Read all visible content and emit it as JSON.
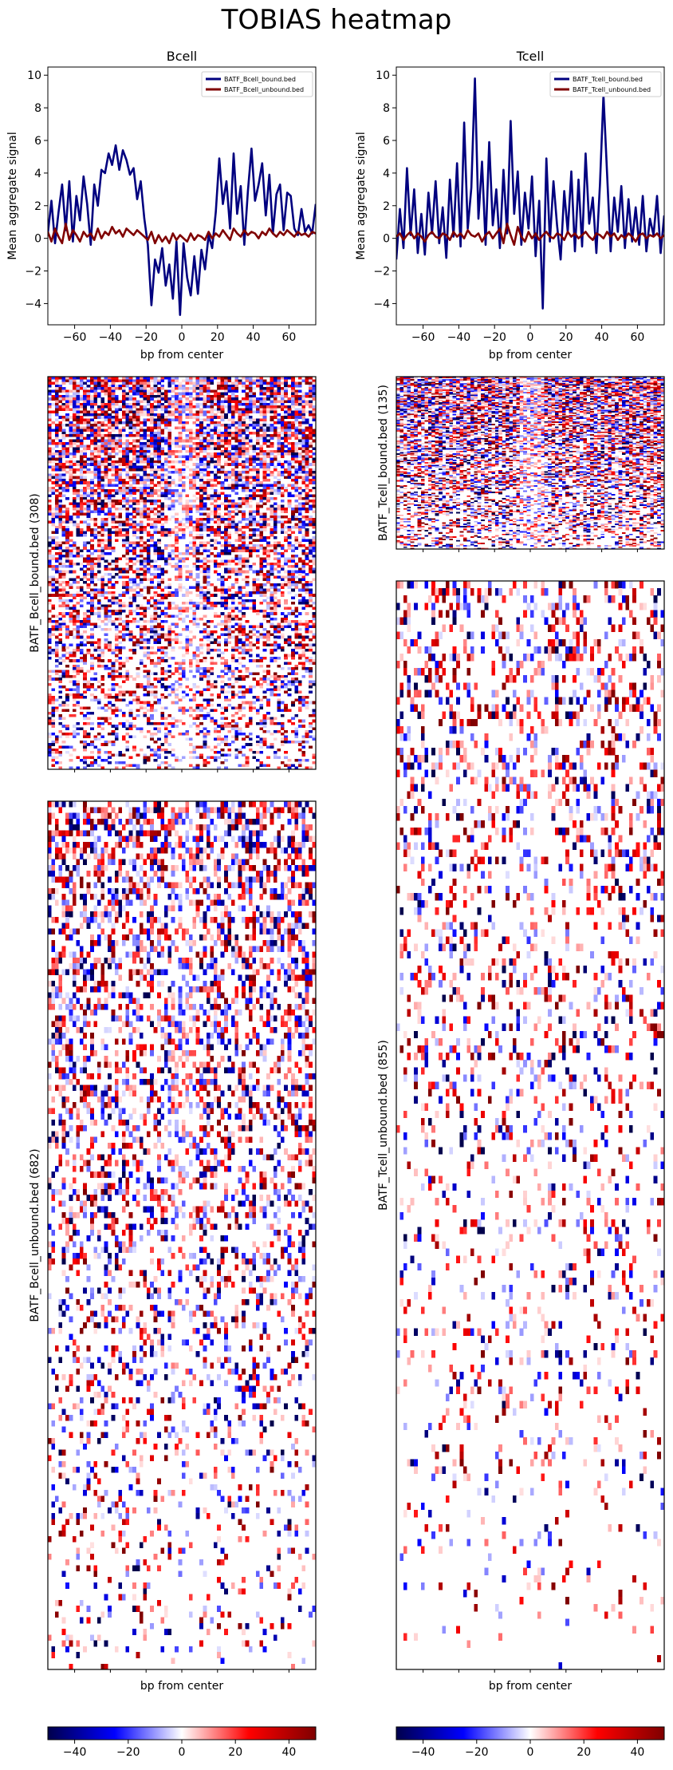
{
  "figure_title": "TOBIAS heatmap",
  "colors": {
    "bound_line": "#00007f",
    "unbound_line": "#7f0000",
    "colormap": [
      "#00004c",
      "#0000ff",
      "#ffffff",
      "#ff0000",
      "#7f0000"
    ]
  },
  "colorbar_ticks": [
    -40,
    -20,
    0,
    20,
    40
  ],
  "colorbar_range": [
    -50,
    50
  ],
  "chart_data": [
    {
      "type": "line",
      "title": "Bcell",
      "xlabel": "bp from center",
      "ylabel": "Mean aggregate signal",
      "xlim": [
        -75,
        75
      ],
      "ylim": [
        -5.3,
        10.5
      ],
      "xticks": [
        -60,
        -40,
        -20,
        0,
        20,
        40,
        60
      ],
      "yticks": [
        -4,
        -2,
        0,
        2,
        4,
        6,
        8,
        10
      ],
      "legend_position": "top-right",
      "series": [
        {
          "name": "BATF_Bcell_bound.bed",
          "x": [
            -75,
            -73,
            -71,
            -69,
            -67,
            -65,
            -63,
            -61,
            -59,
            -57,
            -55,
            -53,
            -51,
            -49,
            -47,
            -45,
            -43,
            -41,
            -39,
            -37,
            -35,
            -33,
            -31,
            -29,
            -27,
            -25,
            -23,
            -21,
            -19,
            -17,
            -15,
            -13,
            -11,
            -9,
            -7,
            -5,
            -3,
            -1,
            1,
            3,
            5,
            7,
            9,
            11,
            13,
            15,
            17,
            19,
            21,
            23,
            25,
            27,
            29,
            31,
            33,
            35,
            37,
            39,
            41,
            43,
            45,
            47,
            49,
            51,
            53,
            55,
            57,
            59,
            61,
            63,
            65,
            67,
            69,
            71,
            73,
            75
          ],
          "y": [
            0.3,
            2.3,
            -0.3,
            1.6,
            3.3,
            0.5,
            3.5,
            -0.2,
            2.6,
            1.1,
            3.8,
            2.1,
            -0.4,
            3.3,
            2.0,
            4.2,
            4.0,
            5.2,
            4.5,
            5.7,
            4.2,
            5.4,
            4.8,
            3.9,
            4.3,
            2.4,
            3.5,
            1.2,
            -0.4,
            -4.1,
            -1.3,
            -2.1,
            -0.6,
            -2.9,
            -1.6,
            -3.7,
            -0.2,
            -4.7,
            -0.3,
            -2.4,
            -3.5,
            -1.1,
            -3.4,
            -0.7,
            -1.9,
            0.2,
            -0.6,
            1.6,
            4.9,
            2.1,
            3.5,
            0.6,
            5.2,
            1.5,
            3.2,
            -0.4,
            2.9,
            5.5,
            2.3,
            3.3,
            4.6,
            1.4,
            3.9,
            0.3,
            2.7,
            3.3,
            0.5,
            2.8,
            2.6,
            0.6,
            0.2,
            1.8,
            0.4,
            0.8,
            0.3,
            2.1
          ]
        },
        {
          "name": "BATF_Bcell_unbound.bed",
          "x": [
            -75,
            -73,
            -71,
            -69,
            -67,
            -65,
            -63,
            -61,
            -59,
            -57,
            -55,
            -53,
            -51,
            -49,
            -47,
            -45,
            -43,
            -41,
            -39,
            -37,
            -35,
            -33,
            -31,
            -29,
            -27,
            -25,
            -23,
            -21,
            -19,
            -17,
            -15,
            -13,
            -11,
            -9,
            -7,
            -5,
            -3,
            -1,
            1,
            3,
            5,
            7,
            9,
            11,
            13,
            15,
            17,
            19,
            21,
            23,
            25,
            27,
            29,
            31,
            33,
            35,
            37,
            39,
            41,
            43,
            45,
            47,
            49,
            51,
            53,
            55,
            57,
            59,
            61,
            63,
            65,
            67,
            69,
            71,
            73,
            75
          ],
          "y": [
            0.4,
            -0.2,
            0.6,
            0.1,
            -0.3,
            0.9,
            -0.1,
            0.5,
            0.2,
            -0.2,
            0.4,
            0.1,
            0.3,
            -0.1,
            0.6,
            0.0,
            0.4,
            0.2,
            0.7,
            0.3,
            0.5,
            0.1,
            0.6,
            0.4,
            0.2,
            0.5,
            0.3,
            0.1,
            -0.1,
            0.4,
            -0.3,
            0.2,
            -0.2,
            0.1,
            -0.3,
            0.3,
            -0.1,
            0.2,
            0.0,
            -0.2,
            0.3,
            -0.1,
            0.2,
            0.1,
            -0.1,
            0.4,
            0.0,
            0.3,
            0.1,
            0.5,
            0.2,
            -0.1,
            0.6,
            0.3,
            0.1,
            0.5,
            0.2,
            0.4,
            0.3,
            0.0,
            0.4,
            0.2,
            0.6,
            0.3,
            0.1,
            0.4,
            0.2,
            0.5,
            0.3,
            0.1,
            0.4,
            0.2,
            0.3,
            0.1,
            0.4,
            0.3
          ]
        }
      ]
    },
    {
      "type": "line",
      "title": "Tcell",
      "xlabel": "bp from center",
      "ylabel": "Mean aggregate signal",
      "xlim": [
        -75,
        75
      ],
      "ylim": [
        -5.3,
        10.5
      ],
      "xticks": [
        -60,
        -40,
        -20,
        0,
        20,
        40,
        60
      ],
      "yticks": [
        -4,
        -2,
        0,
        2,
        4,
        6,
        8,
        10
      ],
      "legend_position": "top-right",
      "series": [
        {
          "name": "BATF_Tcell_bound.bed",
          "x": [
            -75,
            -73,
            -71,
            -69,
            -67,
            -65,
            -63,
            -61,
            -59,
            -57,
            -55,
            -53,
            -51,
            -49,
            -47,
            -45,
            -43,
            -41,
            -39,
            -37,
            -35,
            -33,
            -31,
            -29,
            -27,
            -25,
            -23,
            -21,
            -19,
            -17,
            -15,
            -13,
            -11,
            -9,
            -7,
            -5,
            -3,
            -1,
            1,
            3,
            5,
            7,
            9,
            11,
            13,
            15,
            17,
            19,
            21,
            23,
            25,
            27,
            29,
            31,
            33,
            35,
            37,
            39,
            41,
            43,
            45,
            47,
            49,
            51,
            53,
            55,
            57,
            59,
            61,
            63,
            65,
            67,
            69,
            71,
            73,
            75
          ],
          "y": [
            -1.3,
            1.8,
            -0.6,
            4.3,
            0.2,
            3.0,
            -0.9,
            1.5,
            -1.0,
            2.8,
            0.3,
            3.5,
            -0.3,
            1.9,
            -1.2,
            3.6,
            0.1,
            4.6,
            -0.5,
            7.1,
            0.6,
            3.1,
            9.8,
            1.2,
            4.7,
            -0.4,
            5.9,
            0.8,
            3.0,
            -0.6,
            4.2,
            0.3,
            7.2,
            1.5,
            4.1,
            -0.4,
            2.8,
            0.6,
            3.8,
            -1.1,
            2.3,
            -4.3,
            4.9,
            -0.2,
            3.5,
            0.8,
            -1.3,
            2.9,
            0.4,
            4.1,
            -0.8,
            3.6,
            -0.5,
            5.2,
            0.9,
            2.5,
            -0.9,
            3.3,
            8.8,
            4.0,
            -0.8,
            2.5,
            0.4,
            3.2,
            -0.6,
            2.4,
            -0.2,
            1.9,
            -0.4,
            2.6,
            -0.8,
            1.2,
            0.2,
            2.6,
            -0.9,
            1.4
          ]
        },
        {
          "name": "BATF_Tcell_unbound.bed",
          "x": [
            -75,
            -73,
            -71,
            -69,
            -67,
            -65,
            -63,
            -61,
            -59,
            -57,
            -55,
            -53,
            -51,
            -49,
            -47,
            -45,
            -43,
            -41,
            -39,
            -37,
            -35,
            -33,
            -31,
            -29,
            -27,
            -25,
            -23,
            -21,
            -19,
            -17,
            -15,
            -13,
            -11,
            -9,
            -7,
            -5,
            -3,
            -1,
            1,
            3,
            5,
            7,
            9,
            11,
            13,
            15,
            17,
            19,
            21,
            23,
            25,
            27,
            29,
            31,
            33,
            35,
            37,
            39,
            41,
            43,
            45,
            47,
            49,
            51,
            53,
            55,
            57,
            59,
            61,
            63,
            65,
            67,
            69,
            71,
            73,
            75
          ],
          "y": [
            0.1,
            0.3,
            -0.1,
            0.2,
            0.4,
            0.0,
            0.3,
            0.1,
            -0.2,
            0.2,
            0.4,
            0.1,
            0.0,
            0.3,
            0.2,
            -0.1,
            0.4,
            0.1,
            0.3,
            0.0,
            0.5,
            0.2,
            0.1,
            0.3,
            -0.2,
            0.2,
            0.4,
            0.0,
            0.3,
            0.6,
            -0.3,
            0.9,
            0.2,
            -0.4,
            0.7,
            0.1,
            -0.2,
            0.4,
            0.0,
            0.3,
            -0.1,
            0.2,
            0.4,
            0.1,
            0.0,
            0.3,
            0.2,
            -0.1,
            0.4,
            0.1,
            0.3,
            0.0,
            0.2,
            0.4,
            0.1,
            -0.1,
            0.3,
            0.2,
            0.0,
            0.4,
            0.1,
            0.3,
            -0.1,
            0.2,
            0.0,
            0.3,
            0.1,
            -0.2,
            0.2,
            0.3,
            0.0,
            0.2,
            0.1,
            0.3,
            0.0,
            0.2
          ]
        }
      ]
    },
    {
      "type": "heatmap",
      "column": "Bcell",
      "rows_label": "BATF_Bcell_bound.bed (308)",
      "n_rows": 308,
      "x_range": [
        -75,
        75
      ],
      "value_range": [
        -50,
        50
      ],
      "xlabel": ""
    },
    {
      "type": "heatmap",
      "column": "Bcell",
      "rows_label": "BATF_Bcell_unbound.bed (682)",
      "n_rows": 682,
      "x_range": [
        -75,
        75
      ],
      "value_range": [
        -50,
        50
      ],
      "xlabel": "bp from center"
    },
    {
      "type": "heatmap",
      "column": "Tcell",
      "rows_label": "BATF_Tcell_bound.bed (135)",
      "n_rows": 135,
      "x_range": [
        -75,
        75
      ],
      "value_range": [
        -50,
        50
      ],
      "xlabel": ""
    },
    {
      "type": "heatmap",
      "column": "Tcell",
      "rows_label": "BATF_Tcell_unbound.bed (855)",
      "n_rows": 855,
      "x_range": [
        -75,
        75
      ],
      "value_range": [
        -50,
        50
      ],
      "xlabel": "bp from center"
    }
  ]
}
